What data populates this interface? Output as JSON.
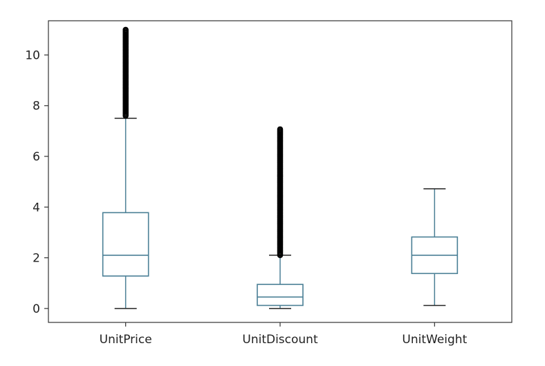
{
  "chart_data": {
    "type": "box",
    "title": "",
    "xlabel": "",
    "ylabel": "",
    "ylim": [
      -0.55,
      11.35
    ],
    "yticks": [
      0,
      2,
      4,
      6,
      8,
      10
    ],
    "ytick_labels": [
      "0",
      "2",
      "4",
      "6",
      "8",
      "10"
    ],
    "grid": false,
    "box_color": "#4a7f95",
    "median_color": "#4a7f95",
    "outlier_color": "#000000",
    "categories": [
      "UnitPrice",
      "UnitDiscount",
      "UnitWeight"
    ],
    "boxes": [
      {
        "label": "UnitPrice",
        "whisker_low": 0.0,
        "q1": 1.28,
        "median": 2.1,
        "q3": 3.78,
        "whisker_high": 7.5,
        "outlier_range": [
          7.6,
          11.0
        ]
      },
      {
        "label": "UnitDiscount",
        "whisker_low": 0.0,
        "q1": 0.12,
        "median": 0.45,
        "q3": 0.95,
        "whisker_high": 2.1,
        "outlier_range": [
          2.1,
          7.1
        ]
      },
      {
        "label": "UnitWeight",
        "whisker_low": 0.12,
        "q1": 1.38,
        "median": 2.1,
        "q3": 2.82,
        "whisker_high": 4.72,
        "outlier_range": null
      }
    ]
  }
}
